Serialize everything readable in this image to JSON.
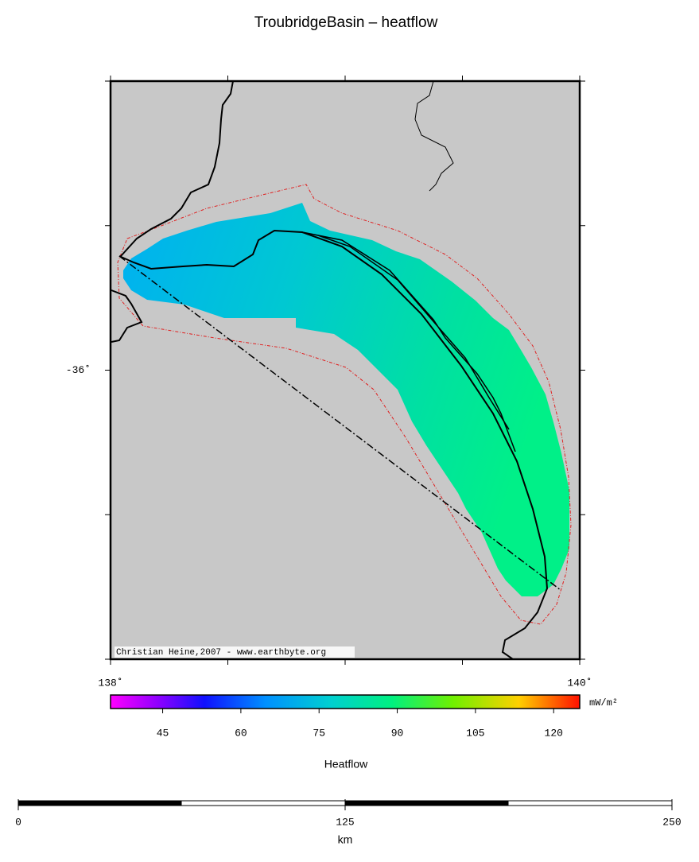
{
  "title": "TroubridgeBasin – heatflow",
  "map": {
    "xlim": [
      138,
      140
    ],
    "ylim": [
      -37,
      -35
    ],
    "xticks": [
      138,
      138.5,
      139,
      139.5,
      140
    ],
    "xtick_labels": [
      "138˚",
      null,
      null,
      null,
      "140˚"
    ],
    "yticks": [
      -37,
      -36.5,
      -36,
      -35.5,
      -35
    ],
    "ytick_labels": [
      null,
      null,
      "-36˚",
      null,
      null
    ],
    "credit": "Christian Heine,2007 - www.earthbyte.org"
  },
  "colorbar": {
    "label": "Heatflow",
    "unit": "mW/m²",
    "lim": [
      35,
      125
    ],
    "ticks": [
      45,
      60,
      75,
      90,
      105,
      120
    ]
  },
  "scalebar": {
    "lim": [
      0,
      250
    ],
    "ticks": [
      0,
      125,
      250
    ],
    "unit": "km"
  }
}
